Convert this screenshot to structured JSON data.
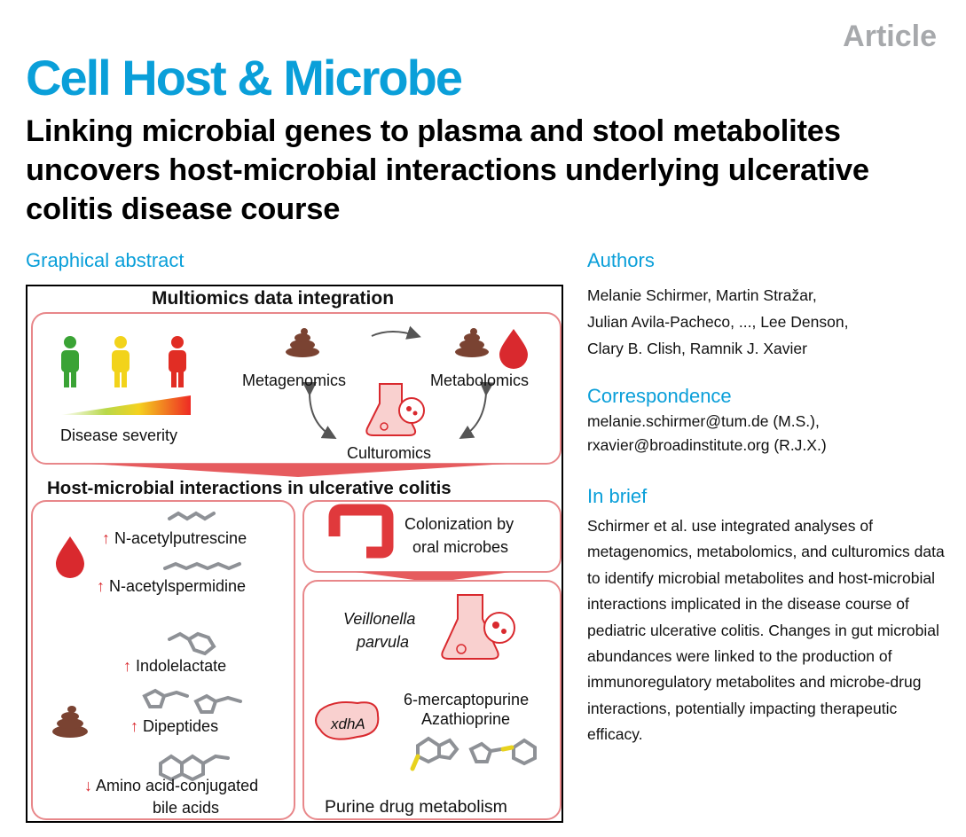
{
  "header": {
    "article_label": "Article",
    "journal": "Cell Host & Microbe",
    "title": "Linking microbial genes to plasma and stool metabolites uncovers host-microbial interactions underlying ulcerative colitis disease course"
  },
  "graphical_abstract": {
    "heading": "Graphical abstract",
    "top_panel": {
      "title": "Multiomics data integration",
      "severity_label": "Disease severity",
      "metagenomics": "Metagenomics",
      "metabolomics": "Metabolomics",
      "culturomics": "Culturomics",
      "person_colors": [
        "#3aa335",
        "#f2d31b",
        "#e12d24"
      ]
    },
    "bottom_title": "Host-microbial interactions in ulcerative colitis",
    "left_panel": {
      "items": [
        {
          "arrow": "up",
          "label": "N-acetylputrescine"
        },
        {
          "arrow": "up",
          "label": "N-acetylspermidine"
        },
        {
          "arrow": "up",
          "label": "Indolelactate"
        },
        {
          "arrow": "up",
          "label": "Dipeptides"
        },
        {
          "arrow": "down",
          "label": "Amino acid-conjugated"
        },
        {
          "arrow": "",
          "label": "bile acids"
        }
      ]
    },
    "right_top": {
      "line1": "Colonization by",
      "line2": "oral microbes"
    },
    "right_bottom": {
      "species_line1": "Veillonella",
      "species_line2": "parvula",
      "gene": "xdhA",
      "drug1": "6-mercaptopurine",
      "drug2": "Azathioprine",
      "caption": "Purine drug metabolism"
    },
    "colors": {
      "accent_red": "#d9292e",
      "panel_border": "#e8878a",
      "stool_brown": "#7a4332"
    }
  },
  "authors": {
    "heading": "Authors",
    "lines": [
      "Melanie Schirmer, Martin Stražar,",
      "Julian Avila-Pacheco, ..., Lee Denson,",
      "Clary B. Clish, Ramnik J. Xavier"
    ]
  },
  "correspondence": {
    "heading": "Correspondence",
    "lines": [
      "melanie.schirmer@tum.de (M.S.),",
      "rxavier@broadinstitute.org (R.J.X.)"
    ]
  },
  "in_brief": {
    "heading": "In brief",
    "text": "Schirmer et al. use integrated analyses of metagenomics, metabolomics, and culturomics data to identify microbial metabolites and host-microbial interactions implicated in the disease course of pediatric ulcerative colitis. Changes in gut microbial abundances were linked to the production of immunoregulatory metabolites and microbe-drug interactions, potentially impacting therapeutic efficacy."
  }
}
